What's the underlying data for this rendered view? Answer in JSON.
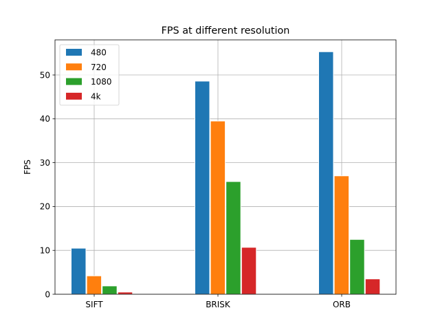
{
  "chart_data": {
    "type": "bar",
    "title": "FPS at different resolution",
    "xlabel": "",
    "ylabel": "FPS",
    "categories": [
      "SIFT",
      "BRISK",
      "ORB"
    ],
    "series": [
      {
        "name": "480",
        "color": "#1f77b4",
        "values": [
          10.5,
          48.6,
          55.3
        ]
      },
      {
        "name": "720",
        "color": "#ff7f0e",
        "values": [
          4.2,
          39.5,
          27.0
        ]
      },
      {
        "name": "1080",
        "color": "#2ca02c",
        "values": [
          1.9,
          25.7,
          12.5
        ]
      },
      {
        "name": "4k",
        "color": "#d62728",
        "values": [
          0.5,
          10.7,
          3.5
        ]
      }
    ],
    "ylim": [
      0,
      58
    ],
    "yticks": [
      0,
      10,
      20,
      30,
      40,
      50
    ],
    "grid": true,
    "legend": "top-left"
  }
}
